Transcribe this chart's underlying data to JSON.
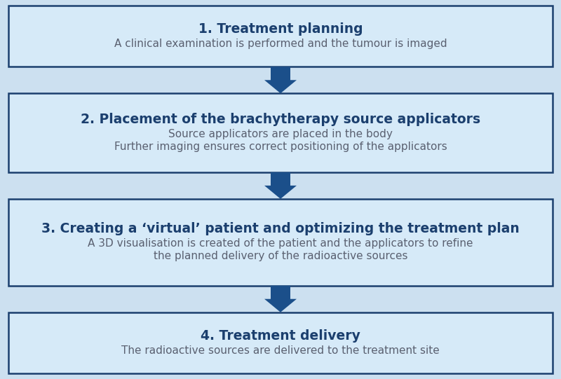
{
  "box_fill_color": "#d6eaf8",
  "box_border_color": "#1b3f6e",
  "arrow_color": "#1b4f8a",
  "title_color": "#1b3f6e",
  "subtitle_color": "#5a6070",
  "outer_bg": "#cce0f0",
  "boxes": [
    {
      "title": "1. Treatment planning",
      "lines": [
        "A clinical examination is performed and the tumour is imaged"
      ]
    },
    {
      "title": "2. Placement of the brachytherapy source applicators",
      "lines": [
        "Source applicators are placed in the body",
        "Further imaging ensures correct positioning of the applicators"
      ]
    },
    {
      "title": "3. Creating a ‘virtual’ patient and optimizing the treatment plan",
      "lines": [
        "A 3D visualisation is created of the patient and the applicators to refine",
        "the planned delivery of the radioactive sources"
      ]
    },
    {
      "title": "4. Treatment delivery",
      "lines": [
        "The radioactive sources are delivered to the treatment site"
      ]
    }
  ],
  "title_fontsize": 13.5,
  "subtitle_fontsize": 11.0,
  "figsize": [
    8.0,
    5.41
  ],
  "dpi": 100
}
